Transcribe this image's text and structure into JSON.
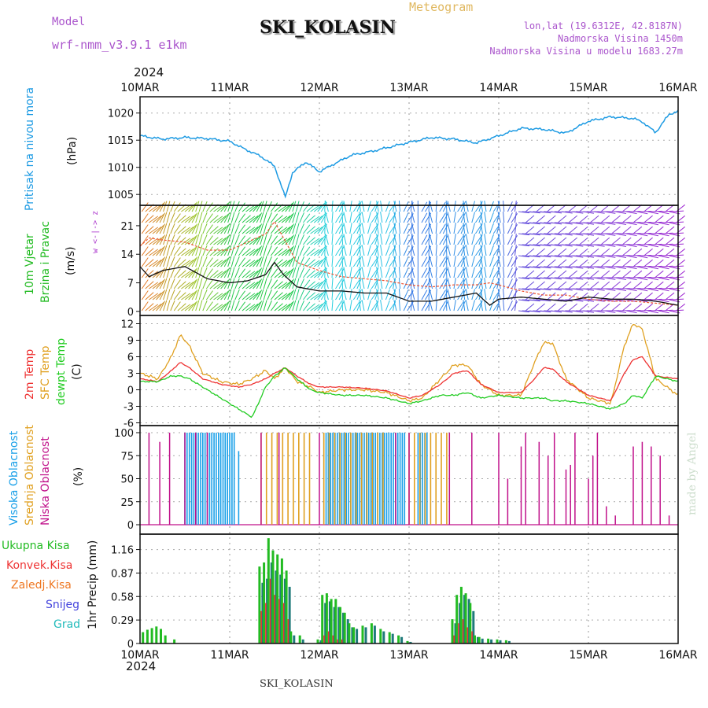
{
  "header": {
    "title": "SKI_KOLASIN",
    "meteogram_label": "Meteogram",
    "model_label": "Model",
    "model_name": "wrf-nmm_v3.9.1  e1km",
    "lonlat": "lon,lat (19.6312E, 42.8187N)",
    "elevation": "Nadmorska Visina 1450m",
    "model_elevation": "Nadmorska Visina u modelu 1683.27m",
    "year_top": "2024",
    "year_bottom": "2024",
    "footer_station": "SKI_KOLASIN",
    "credit": "made by Angel"
  },
  "colors": {
    "pressure": "#1e9be3",
    "wind_green": "#22bb22",
    "wind_purple": "#aa33cc",
    "temp2m": "#ee3333",
    "sfc": "#e0a020",
    "dewpt": "#22cc22",
    "cloud_high": "#1aa0e8",
    "cloud_mid": "#e0a020",
    "cloud_low": "#c0108a",
    "prec_total": "#22bb22",
    "prec_conv": "#ee3333",
    "prec_frozen": "#ee7722",
    "prec_snow": "#4444dd",
    "prec_grad": "#22bbbb"
  },
  "time_axis": {
    "labels": [
      "10MAR",
      "11MAR",
      "12MAR",
      "13MAR",
      "14MAR",
      "15MAR",
      "16MAR"
    ]
  },
  "chart_data": [
    {
      "type": "line",
      "panel": "pressure",
      "ylabel_main": "Pritisak na nivou mora",
      "unit": "(hPa)",
      "ylim": [
        1003,
        1023
      ],
      "yticks": [
        1005,
        1010,
        1015,
        1020
      ],
      "x_days": [
        0,
        0.25,
        0.5,
        0.75,
        1.0,
        1.15,
        1.35,
        1.5,
        1.62,
        1.7,
        1.85,
        2.0,
        2.15,
        2.35,
        2.6,
        2.8,
        3.0,
        3.25,
        3.5,
        3.75,
        4.0,
        4.25,
        4.5,
        4.75,
        5.0,
        5.25,
        5.5,
        5.6,
        5.75,
        5.9,
        6.0
      ],
      "values": [
        1015.8,
        1015.2,
        1015.5,
        1015.3,
        1014.8,
        1013.5,
        1012.0,
        1010.2,
        1004.5,
        1009.0,
        1011.0,
        1009.2,
        1010.5,
        1012.2,
        1013.0,
        1013.8,
        1014.6,
        1015.5,
        1015.2,
        1014.5,
        1015.8,
        1017.2,
        1017.0,
        1016.3,
        1018.5,
        1019.3,
        1019.0,
        1018.4,
        1016.4,
        1019.8,
        1020.3
      ]
    },
    {
      "type": "line",
      "panel": "wind",
      "ylabel_main": "10m Vjetar",
      "ylabel_sub": "Brzina i Pravac",
      "unit": "(m/s)",
      "compass": "w <-|-> z",
      "ylim": [
        -1,
        26
      ],
      "yticks": [
        0,
        7,
        14,
        21
      ],
      "x_days": [
        0,
        0.1,
        0.25,
        0.5,
        0.75,
        1.0,
        1.2,
        1.4,
        1.5,
        1.6,
        1.75,
        2.0,
        2.25,
        2.5,
        2.75,
        3.0,
        3.25,
        3.5,
        3.75,
        3.9,
        4.0,
        4.25,
        4.5,
        4.75,
        5.0,
        5.25,
        5.5,
        5.75,
        6.0
      ],
      "speed": [
        11,
        8.5,
        10,
        11,
        8,
        7,
        7.5,
        9,
        12,
        9,
        6,
        5,
        5,
        4.5,
        4.5,
        2.5,
        2.5,
        3.5,
        4.5,
        1.5,
        3,
        3.5,
        3,
        2.5,
        3.5,
        3,
        3,
        2.5,
        1.5
      ],
      "gust": [
        16,
        18,
        17.5,
        17,
        15,
        15,
        17,
        19,
        22,
        18,
        12,
        10,
        8.5,
        8,
        7.5,
        6.5,
        6,
        6.5,
        6.5,
        7,
        6.5,
        5,
        4,
        4,
        3,
        2.5,
        2.5,
        2,
        1.5
      ]
    },
    {
      "type": "line",
      "panel": "temperature",
      "ylabel_t2m": "2m Temp",
      "ylabel_sfc": "SFC Temp",
      "ylabel_dew": "dewpt Temp",
      "unit": "(C)",
      "ylim": [
        -6.5,
        13.5
      ],
      "yticks": [
        -6,
        -3,
        0,
        3,
        6,
        9,
        12
      ],
      "x_days": [
        0,
        0.2,
        0.35,
        0.45,
        0.55,
        0.7,
        0.9,
        1.1,
        1.25,
        1.4,
        1.5,
        1.62,
        1.75,
        1.9,
        2.0,
        2.25,
        2.5,
        2.75,
        3.0,
        3.15,
        3.35,
        3.5,
        3.65,
        3.8,
        4.0,
        4.25,
        4.4,
        4.5,
        4.6,
        4.75,
        5.0,
        5.25,
        5.4,
        5.5,
        5.6,
        5.75,
        6.0
      ],
      "t2m": [
        2.0,
        1.5,
        3.5,
        5.0,
        4.0,
        2.0,
        1.0,
        0.5,
        1.0,
        2.0,
        3.0,
        4.0,
        2.5,
        1.0,
        0.5,
        0.5,
        0.3,
        -0.2,
        -1.5,
        -1.0,
        1.0,
        3.0,
        3.5,
        1.0,
        -0.5,
        -0.5,
        2.0,
        4.0,
        3.8,
        1.5,
        -1.0,
        -2.0,
        3.0,
        5.5,
        6.0,
        2.5,
        2.0
      ],
      "sfc": [
        3.0,
        2.0,
        6.0,
        10.0,
        8.0,
        3.0,
        1.5,
        1.0,
        2.0,
        3.5,
        2.0,
        4.0,
        1.5,
        0.5,
        -0.5,
        0.0,
        0.0,
        -0.5,
        -2.0,
        -1.5,
        2.0,
        4.5,
        4.5,
        1.0,
        -1.0,
        -1.0,
        5.0,
        8.5,
        8.5,
        2.0,
        -1.5,
        -2.5,
        8.0,
        12.0,
        11.0,
        2.0,
        -1.0
      ],
      "dewpt": [
        1.5,
        1.5,
        2.5,
        2.5,
        2.0,
        0.5,
        -1.5,
        -3.5,
        -5.0,
        0.5,
        2.5,
        4.0,
        2.0,
        0.0,
        -0.5,
        -1.0,
        -1.0,
        -1.5,
        -2.5,
        -2.0,
        -1.0,
        -1.0,
        -0.5,
        -1.5,
        -1.0,
        -1.5,
        -1.5,
        -1.5,
        -2.0,
        -2.0,
        -2.5,
        -3.5,
        -2.5,
        -1.0,
        -1.5,
        2.5,
        1.5
      ]
    },
    {
      "type": "bar",
      "panel": "clouds",
      "ylabel_high": "Visoka Oblacnost",
      "ylabel_mid": "Srednja Oblacnost",
      "ylabel_low": "Niska Oblacnost",
      "unit": "(%)",
      "ylim": [
        0,
        100
      ],
      "yticks": [
        0,
        25,
        50,
        75,
        100
      ],
      "high_blocks": [
        [
          0.5,
          1.05,
          100
        ],
        [
          1.1,
          1.12,
          80
        ],
        [
          2.05,
          2.95,
          100
        ],
        [
          3.1,
          3.2,
          100
        ]
      ],
      "mid_blocks": [
        [
          1.35,
          1.9,
          100
        ],
        [
          2.05,
          2.75,
          100
        ],
        [
          3.0,
          3.45,
          100
        ]
      ],
      "low_spikes": [
        [
          0.1,
          100
        ],
        [
          0.22,
          90
        ],
        [
          0.33,
          100
        ],
        [
          0.5,
          100
        ],
        [
          0.62,
          100
        ],
        [
          0.75,
          100
        ],
        [
          1.35,
          100
        ],
        [
          1.55,
          100
        ],
        [
          2.0,
          100
        ],
        [
          2.85,
          100
        ],
        [
          3.0,
          100
        ],
        [
          3.45,
          100
        ],
        [
          3.7,
          100
        ],
        [
          4.0,
          100
        ],
        [
          4.1,
          50
        ],
        [
          4.25,
          85
        ],
        [
          4.3,
          100
        ],
        [
          4.45,
          90
        ],
        [
          4.55,
          75
        ],
        [
          4.62,
          100
        ],
        [
          4.75,
          60
        ],
        [
          4.8,
          65
        ],
        [
          4.85,
          100
        ],
        [
          5.0,
          50
        ],
        [
          5.05,
          75
        ],
        [
          5.1,
          100
        ],
        [
          5.2,
          20
        ],
        [
          5.3,
          10
        ],
        [
          5.5,
          85
        ],
        [
          5.6,
          90
        ],
        [
          5.7,
          85
        ],
        [
          5.8,
          75
        ],
        [
          5.9,
          10
        ]
      ]
    },
    {
      "type": "bar",
      "panel": "precipitation",
      "ylabel_total": "Ukupna Kisa",
      "ylabel_conv": "Konvek.Kisa",
      "ylabel_frozen": "Zaledj.Kisa",
      "ylabel_snow": "Snijeg",
      "ylabel_grad": "Grad",
      "ylabel_axis": "1hr Precip (mm)",
      "ylim": [
        0,
        1.35
      ],
      "yticks": [
        0,
        0.29,
        0.58,
        0.87,
        1.16
      ],
      "ytick_labels": [
        "0",
        "0.29",
        "0.58",
        "0.87",
        "1.16"
      ],
      "bars_x_days": [
        0.05,
        0.1,
        0.15,
        0.2,
        0.25,
        0.3,
        0.4,
        1.35,
        1.4,
        1.45,
        1.5,
        1.55,
        1.6,
        1.65,
        1.7,
        1.8,
        2.0,
        2.05,
        2.1,
        2.15,
        2.2,
        2.25,
        2.3,
        2.35,
        2.4,
        2.5,
        2.6,
        2.7,
        2.8,
        2.9,
        3.0,
        3.5,
        3.55,
        3.6,
        3.65,
        3.7,
        3.75,
        3.8,
        3.9,
        4.0,
        4.1
      ],
      "total": [
        0.14,
        0.17,
        0.19,
        0.21,
        0.18,
        0.1,
        0.05,
        0.95,
        1.0,
        1.3,
        1.15,
        1.1,
        1.05,
        0.9,
        0.15,
        0.1,
        0.05,
        0.6,
        0.62,
        0.55,
        0.55,
        0.45,
        0.38,
        0.25,
        0.2,
        0.22,
        0.25,
        0.18,
        0.14,
        0.1,
        0.03,
        0.3,
        0.6,
        0.7,
        0.62,
        0.5,
        0.1,
        0.08,
        0.06,
        0.05,
        0.04
      ],
      "convective": [
        0,
        0,
        0,
        0,
        0,
        0,
        0,
        0.4,
        0.5,
        0.8,
        0.6,
        0.55,
        0.5,
        0.3,
        0,
        0,
        0,
        0.1,
        0.15,
        0.1,
        0.05,
        0.05,
        0,
        0,
        0,
        0,
        0,
        0,
        0,
        0,
        0,
        0.1,
        0.25,
        0.3,
        0.2,
        0.15,
        0,
        0,
        0,
        0,
        0
      ],
      "snow": [
        0,
        0,
        0,
        0,
        0,
        0,
        0,
        0.75,
        0.8,
        1.0,
        0.9,
        0.85,
        0.8,
        0.7,
        0.1,
        0.05,
        0.04,
        0.5,
        0.52,
        0.45,
        0.45,
        0.38,
        0.3,
        0.2,
        0.18,
        0.2,
        0.22,
        0.15,
        0.12,
        0.08,
        0.02,
        0.25,
        0.5,
        0.6,
        0.55,
        0.4,
        0.08,
        0.06,
        0.05,
        0.04,
        0.03
      ]
    }
  ]
}
